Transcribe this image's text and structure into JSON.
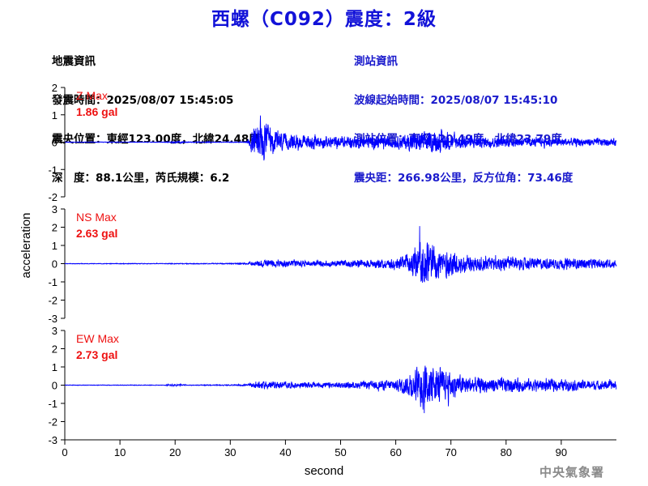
{
  "title": "西螺（C092）震度：2級",
  "event_info": {
    "heading": "地震資訊",
    "origin_time": "發震時間：2025/08/07 15:45:05",
    "epicenter": "震央位置：東經123.00度，北緯24.48度",
    "depth_magnitude": "深　度：88.1公里，芮氏規模：6.2"
  },
  "station_info": {
    "heading": "測站資訊",
    "wave_start": "波線起始時間：2025/08/07 15:45:10",
    "station_location": "測站位置：東經120.49度，北緯23.79度",
    "distance": "震央距：266.98公里，反方位角：73.46度"
  },
  "footer": "中央氣象署",
  "colors": {
    "trace": "#0000ff",
    "max_label": "#ee1111",
    "title": "#1212d8"
  },
  "chart_data": {
    "type": "line",
    "xlabel": "second",
    "ylabel": "acceleration",
    "xlim": [
      0,
      100
    ],
    "x_ticks": [
      0,
      10,
      20,
      30,
      40,
      50,
      60,
      70,
      80,
      90
    ],
    "panels": [
      {
        "name": "Z",
        "max_label": "Z Max",
        "max_value": "1.86 gal",
        "ylim": [
          -2,
          2
        ],
        "y_ticks": [
          -2,
          -1,
          0,
          1,
          2
        ],
        "envelope": [
          [
            0,
            0.02
          ],
          [
            18,
            0.02
          ],
          [
            19,
            0.05
          ],
          [
            21,
            0.06
          ],
          [
            22,
            0.03
          ],
          [
            25,
            0.03
          ],
          [
            26,
            0.04
          ],
          [
            27,
            0.02
          ],
          [
            33,
            0.03
          ],
          [
            34,
            0.8
          ],
          [
            35.5,
            1.8
          ],
          [
            37,
            1.0
          ],
          [
            40,
            0.55
          ],
          [
            45,
            0.45
          ],
          [
            50,
            0.4
          ],
          [
            55,
            0.45
          ],
          [
            60,
            0.4
          ],
          [
            62,
            0.6
          ],
          [
            65,
            0.7
          ],
          [
            68,
            0.7
          ],
          [
            70,
            0.55
          ],
          [
            75,
            0.4
          ],
          [
            80,
            0.35
          ],
          [
            85,
            0.3
          ],
          [
            90,
            0.3
          ],
          [
            95,
            0.28
          ],
          [
            100,
            0.25
          ]
        ]
      },
      {
        "name": "NS",
        "max_label": "NS Max",
        "max_value": "2.63 gal",
        "ylim": [
          -3,
          3
        ],
        "y_ticks": [
          -3,
          -2,
          -1,
          0,
          1,
          2,
          3
        ],
        "envelope": [
          [
            0,
            0.03
          ],
          [
            20,
            0.04
          ],
          [
            30,
            0.05
          ],
          [
            33,
            0.08
          ],
          [
            35,
            0.35
          ],
          [
            38,
            0.35
          ],
          [
            45,
            0.3
          ],
          [
            50,
            0.35
          ],
          [
            55,
            0.4
          ],
          [
            60,
            0.6
          ],
          [
            63,
            1.3
          ],
          [
            65,
            2.6
          ],
          [
            67,
            1.9
          ],
          [
            70,
            1.3
          ],
          [
            72,
            1.0
          ],
          [
            75,
            0.8
          ],
          [
            80,
            0.7
          ],
          [
            85,
            0.6
          ],
          [
            90,
            0.55
          ],
          [
            95,
            0.5
          ],
          [
            100,
            0.45
          ]
        ]
      },
      {
        "name": "EW",
        "max_label": "EW Max",
        "max_value": "2.73 gal",
        "ylim": [
          -3,
          3
        ],
        "y_ticks": [
          -3,
          -2,
          -1,
          0,
          1,
          2,
          3
        ],
        "envelope": [
          [
            0,
            0.03
          ],
          [
            18,
            0.03
          ],
          [
            19,
            0.12
          ],
          [
            21,
            0.12
          ],
          [
            22,
            0.04
          ],
          [
            30,
            0.05
          ],
          [
            33,
            0.08
          ],
          [
            35,
            0.4
          ],
          [
            38,
            0.35
          ],
          [
            45,
            0.3
          ],
          [
            50,
            0.3
          ],
          [
            55,
            0.4
          ],
          [
            60,
            0.6
          ],
          [
            63,
            1.3
          ],
          [
            65,
            2.7
          ],
          [
            67,
            1.8
          ],
          [
            70,
            1.4
          ],
          [
            72,
            1.0
          ],
          [
            75,
            0.8
          ],
          [
            80,
            0.75
          ],
          [
            85,
            0.65
          ],
          [
            90,
            0.6
          ],
          [
            95,
            0.5
          ],
          [
            100,
            0.45
          ]
        ]
      }
    ]
  }
}
